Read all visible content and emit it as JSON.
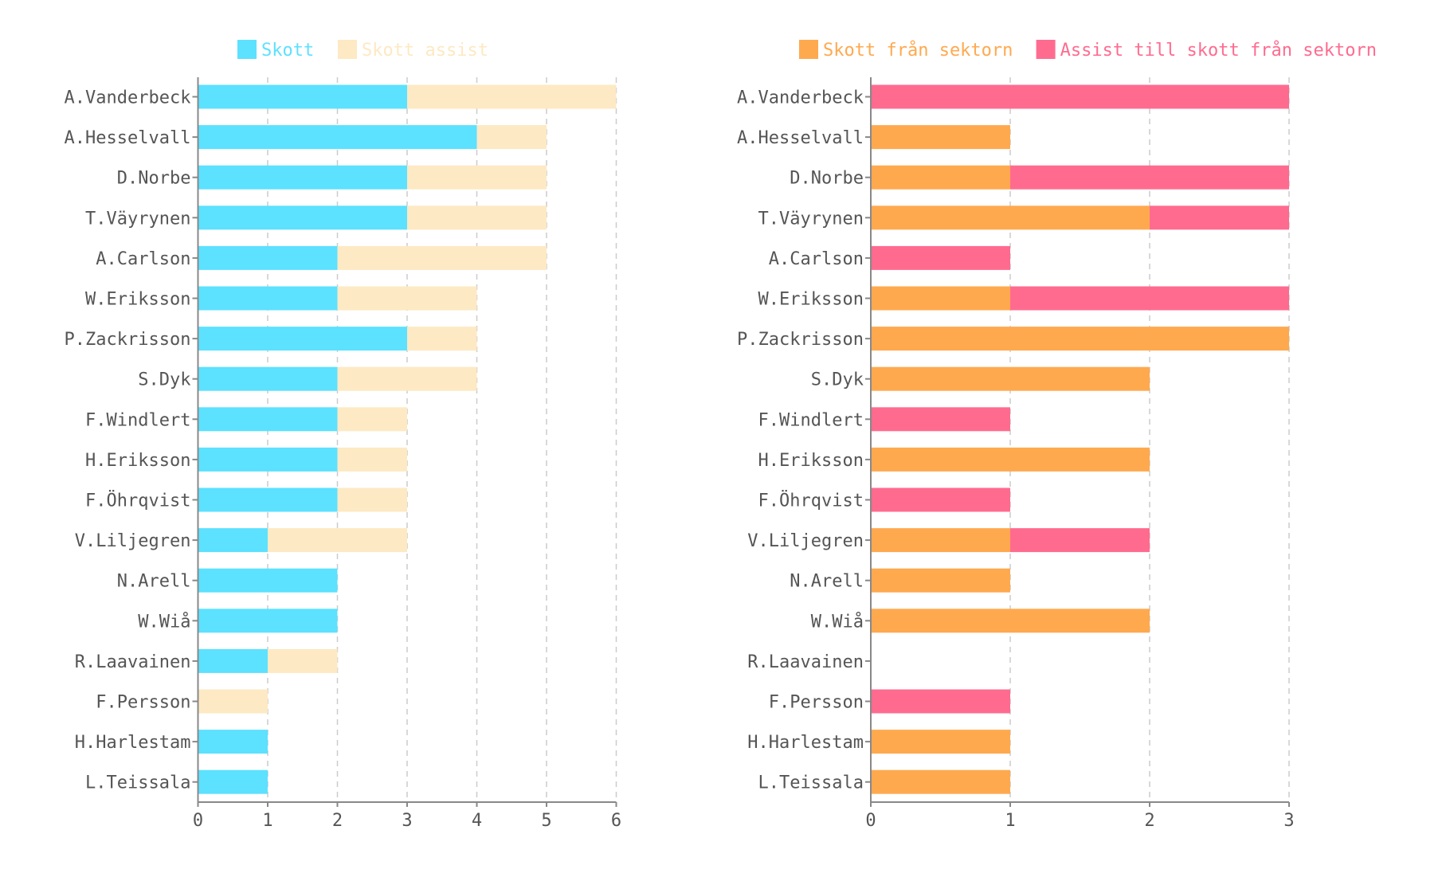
{
  "chart_data": [
    {
      "type": "bar",
      "orientation": "horizontal",
      "stacked": true,
      "categories": [
        "A.Vanderbeck",
        "A.Hesselvall",
        "D.Norbe",
        "T.Väyrynen",
        "A.Carlson",
        "W.Eriksson",
        "P.Zackrisson",
        "S.Dyk",
        "F.Windlert",
        "H.Eriksson",
        "F.Öhrqvist",
        "V.Liljegren",
        "N.Arell",
        "W.Wiå",
        "R.Laavainen",
        "F.Persson",
        "H.Harlestam",
        "L.Teissala"
      ],
      "series": [
        {
          "name": "Skott",
          "color": "#5ce1ff",
          "values": [
            3,
            4,
            3,
            3,
            2,
            2,
            3,
            2,
            2,
            2,
            2,
            1,
            2,
            2,
            1,
            0,
            1,
            1
          ]
        },
        {
          "name": "Skott assist",
          "color": "#fde9c3",
          "values": [
            3,
            1,
            2,
            2,
            3,
            2,
            1,
            2,
            1,
            1,
            1,
            2,
            0,
            0,
            1,
            1,
            0,
            0
          ]
        }
      ],
      "xlim": [
        0,
        6
      ],
      "xticks": [
        "0",
        "1",
        "2",
        "3",
        "4",
        "5",
        "6"
      ],
      "grid": true,
      "legend": "top-center"
    },
    {
      "type": "bar",
      "orientation": "horizontal",
      "stacked": true,
      "categories": [
        "A.Vanderbeck",
        "A.Hesselvall",
        "D.Norbe",
        "T.Väyrynen",
        "A.Carlson",
        "W.Eriksson",
        "P.Zackrisson",
        "S.Dyk",
        "F.Windlert",
        "H.Eriksson",
        "F.Öhrqvist",
        "V.Liljegren",
        "N.Arell",
        "W.Wiå",
        "R.Laavainen",
        "F.Persson",
        "H.Harlestam",
        "L.Teissala"
      ],
      "series": [
        {
          "name": "Skott från sektorn",
          "color": "#ffa94f",
          "values": [
            0,
            1,
            1,
            2,
            0,
            1,
            3,
            2,
            0,
            2,
            0,
            1,
            1,
            2,
            0,
            0,
            1,
            1
          ]
        },
        {
          "name": "Assist till skott från sektorn",
          "color": "#ff6b8f",
          "values": [
            3,
            0,
            2,
            1,
            1,
            2,
            0,
            0,
            1,
            0,
            1,
            1,
            0,
            0,
            0,
            1,
            0,
            0
          ]
        }
      ],
      "xlim": [
        0,
        3
      ],
      "xticks": [
        "0",
        "1",
        "2",
        "3"
      ],
      "grid": true,
      "legend": "top-center"
    }
  ]
}
